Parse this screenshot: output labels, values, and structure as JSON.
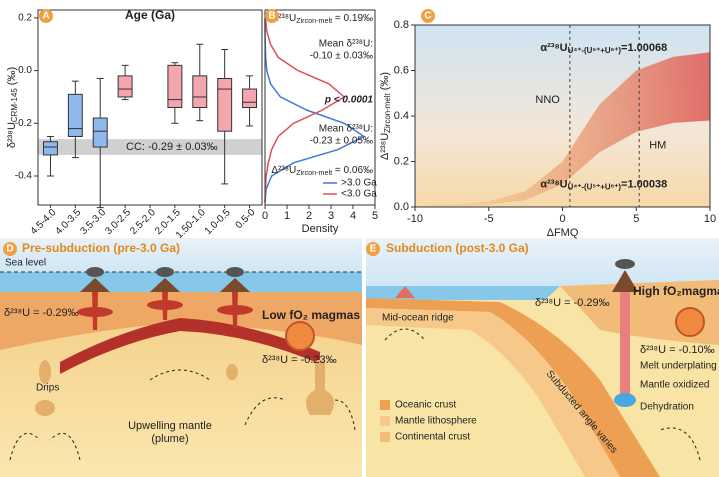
{
  "panel_labels": [
    "A",
    "B",
    "C",
    "D",
    "E"
  ],
  "chart_data": [
    {
      "type": "box",
      "title": "Age (Ga)",
      "y_label": {
        "main": "δ²³⁸U",
        "sub": "CRM-145",
        "tail": " (‰)"
      },
      "categories": [
        "4.5-4.0",
        "4.0-3.5",
        "3.5-3.0",
        "3.0-2.5",
        "2.5-2.0",
        "2.0-1.5",
        "1.50-1.0",
        "1.0-0.5",
        "0.5-0"
      ],
      "boxes": [
        {
          "min": -0.4,
          "q1": -0.32,
          "median": -0.29,
          "q3": -0.27,
          "max": -0.25,
          "color": "#8fb8ec"
        },
        {
          "min": -0.33,
          "q1": -0.25,
          "median": -0.22,
          "q3": -0.09,
          "max": -0.04,
          "color": "#8fb8ec"
        },
        {
          "min": -0.52,
          "q1": -0.29,
          "median": -0.23,
          "q3": -0.18,
          "max": -0.03,
          "color": "#8fb8ec"
        },
        {
          "min": -0.11,
          "q1": -0.1,
          "median": -0.07,
          "q3": -0.02,
          "max": 0.02,
          "color": "#f4a6ae"
        },
        null,
        {
          "min": -0.2,
          "q1": -0.14,
          "median": -0.11,
          "q3": 0.02,
          "max": 0.03,
          "color": "#f4a6ae"
        },
        {
          "min": -0.19,
          "q1": -0.14,
          "median": -0.1,
          "q3": -0.02,
          "max": 0.1,
          "color": "#f4a6ae"
        },
        {
          "min": -0.43,
          "q1": -0.23,
          "median": -0.07,
          "q3": -0.03,
          "max": 0.08,
          "color": "#f4a6ae"
        },
        {
          "min": -0.21,
          "q1": -0.14,
          "median": -0.12,
          "q3": -0.07,
          "max": -0.02,
          "color": "#f4a6ae"
        }
      ],
      "ylim": [
        -0.51,
        0.23
      ],
      "yticks": [
        -0.4,
        -0.2,
        {
          "value": 0,
          "label": "0.0"
        },
        0.2
      ],
      "reference": {
        "label": "CC: -0.29 ± 0.03‰",
        "value": -0.29,
        "error": 0.03,
        "color": "#c4c4c4"
      }
    },
    {
      "type": "density",
      "xlabel": "Density",
      "y": [
        -0.5,
        -0.45,
        -0.4,
        -0.35,
        -0.3,
        -0.25,
        -0.2,
        -0.15,
        -0.1,
        -0.05,
        0,
        0.05,
        0.1,
        0.15,
        0.2
      ],
      "series": [
        {
          "name": ">3.0 Ga",
          "color": "#3f7bd6",
          "values": [
            0.0,
            0.05,
            0.3,
            1.3,
            3.3,
            4.5,
            3.6,
            1.9,
            0.7,
            0.25,
            0.08,
            0.03,
            0.01,
            0.0,
            0.0
          ]
        },
        {
          "name": "<3.0 Ga",
          "color": "#e0505a",
          "values": [
            0.0,
            0.02,
            0.05,
            0.15,
            0.3,
            0.6,
            1.3,
            2.6,
            3.6,
            2.9,
            1.5,
            0.6,
            0.25,
            0.08,
            0.02
          ]
        }
      ],
      "xlim": [
        0,
        5
      ],
      "xticks": [
        0,
        1,
        2,
        3,
        4,
        5
      ],
      "ylim": [
        -0.51,
        0.23
      ],
      "legend": "lower right",
      "annotations": [
        {
          "main": "Δ²³⁸U",
          "sub": "Zircon-melt",
          "tail": " = 0.19‰",
          "color": "#e0505a"
        },
        {
          "lines": [
            "Mean δ²³⁸U:",
            "-0.10 ± 0.03‰"
          ],
          "color": "#e0505a"
        },
        {
          "lines": [
            "p < 0.0001"
          ],
          "color": "#111111"
        },
        {
          "lines": [
            "Mean δ²³⁸U:",
            "-0.23 ± 0.05‰"
          ],
          "color": "#3f7bd6"
        },
        {
          "main": "Δ²³⁸U",
          "sub": "Zircon-melt",
          "tail": " = 0.06‰",
          "color": "#3f7bd6"
        }
      ]
    },
    {
      "type": "band",
      "xlabel": "ΔFMQ",
      "y_label": {
        "main": "Δ²³⁸U",
        "sub": "Zircon-melt",
        "tail": " (‰)"
      },
      "x": [
        -10,
        -7.5,
        -5,
        -2.5,
        0,
        2.5,
        5,
        7.5,
        10
      ],
      "upper": [
        0.01,
        0.012,
        0.025,
        0.07,
        0.2,
        0.45,
        0.6,
        0.66,
        0.68
      ],
      "lower": [
        0.0,
        0.003,
        0.01,
        0.03,
        0.1,
        0.24,
        0.33,
        0.37,
        0.38
      ],
      "colors": [
        "#f3de8a",
        "#e0605c"
      ],
      "xlim": [
        -10,
        10
      ],
      "xticks": [
        -10,
        -5,
        0,
        5,
        10
      ],
      "ylim": [
        0,
        0.8
      ],
      "yticks": [
        {
          "value": 0,
          "label": "0.0"
        },
        0.2,
        0.4,
        0.6,
        0.8
      ],
      "reference_lines": [
        {
          "x": 0.5,
          "label": "NNO"
        },
        {
          "x": 5.2,
          "label": "HM"
        }
      ],
      "annotations": [
        {
          "main": "α²³⁸U",
          "sub": "U⁴⁺-(U⁵⁺+U⁶⁺)",
          "tail": "=1.00068"
        },
        {
          "main": "α²³⁸U",
          "sub": "U⁴⁺-(U⁵⁺+U⁶⁺)",
          "tail": "=1.00038"
        }
      ]
    }
  ],
  "diagrams": {
    "D": {
      "title": "Pre-subduction (pre-3.0 Ga)",
      "sea_level": "Sea level",
      "crust_value": "δ²³⁸U = -0.29‰",
      "magmas": "Low fO₂ magmas",
      "magma_value": "δ²³⁸U = -0.23‰",
      "drips": "Drips",
      "mantle": [
        "Upwelling mantle",
        "(plume)"
      ]
    },
    "E": {
      "title": "Subduction (post-3.0 Ga)",
      "ridge": "Mid-ocean ridge",
      "crust_value": "δ²³⁸U = -0.29‰",
      "magmas": "High fO₂magmas",
      "magma_value": "δ²³⁸U = -0.10‰",
      "underplating": "Melt underplating",
      "oxidized": "Mantle oxidized",
      "dehydration": "Dehydration",
      "slab": "Subducted angle varies",
      "legend": [
        "Oceanic crust",
        "Mantle lithosphere",
        "Continental crust"
      ]
    }
  }
}
